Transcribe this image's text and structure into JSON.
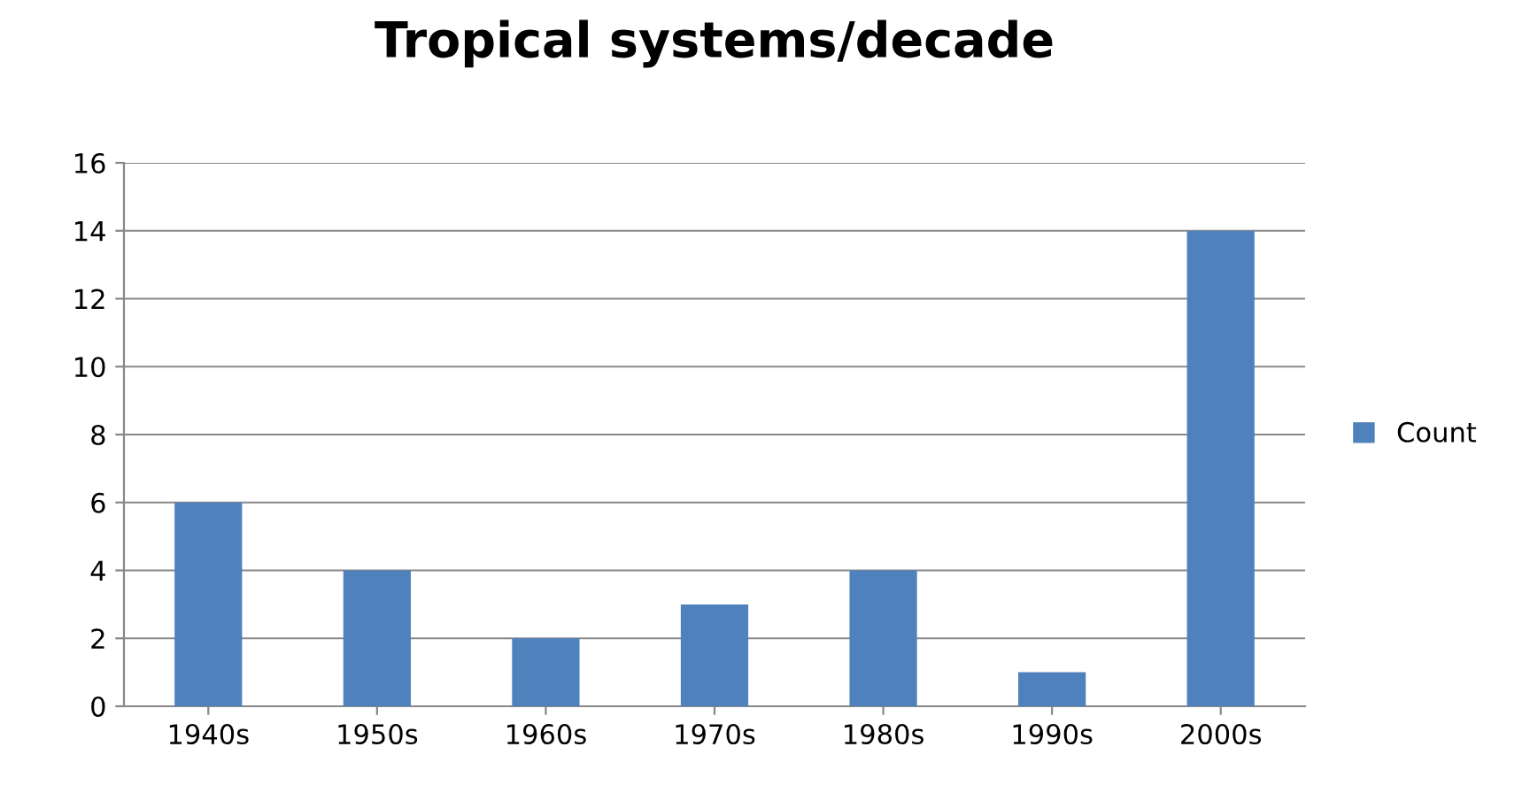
{
  "chart_data": {
    "type": "bar",
    "title": "Tropical systems/decade",
    "categories": [
      "1940s",
      "1950s",
      "1960s",
      "1970s",
      "1980s",
      "1990s",
      "2000s"
    ],
    "series": [
      {
        "name": "Count",
        "color": "#4f81bd",
        "values": [
          6,
          4,
          2,
          3,
          4,
          1,
          14
        ]
      }
    ],
    "ylim": [
      0,
      16
    ],
    "yticks": [
      0,
      2,
      4,
      6,
      8,
      10,
      12,
      14,
      16
    ],
    "grid": "y",
    "legend": "right"
  }
}
